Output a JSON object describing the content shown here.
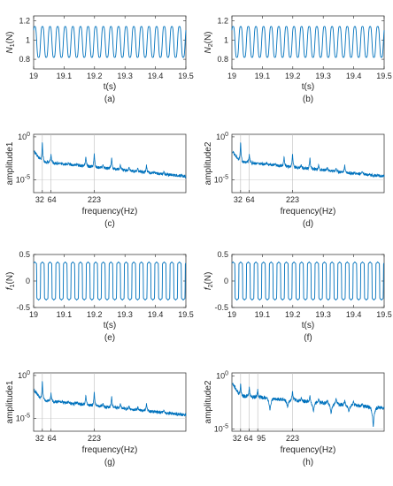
{
  "chart_data": [
    {
      "id": "a",
      "caption": "(a)",
      "type": "line",
      "kind": "time",
      "xlabel": "t(s)",
      "ylabel_main": "N",
      "ylabel_sub": "1",
      "ylabel_unit": "(N)",
      "xlim": [
        19,
        19.5
      ],
      "ylim": [
        0.7,
        1.25
      ],
      "xticks": [
        "19",
        "19.1",
        "19.2",
        "19.3",
        "19.4",
        "19.5"
      ],
      "yticks": [
        "0.8",
        "1",
        "1.2"
      ],
      "ytick_values": [
        0.8,
        1.0,
        1.2
      ],
      "series": [
        {
          "amplitude": 0.18,
          "mean": 0.98,
          "cycles": 20,
          "shape": "sine",
          "color": "#0072bd"
        }
      ]
    },
    {
      "id": "b",
      "caption": "(b)",
      "type": "line",
      "kind": "time",
      "xlabel": "t(s)",
      "ylabel_main": "N",
      "ylabel_sub": "2",
      "ylabel_unit": "(N)",
      "xlim": [
        19,
        19.5
      ],
      "ylim": [
        0.7,
        1.25
      ],
      "xticks": [
        "19",
        "19.1",
        "19.2",
        "19.3",
        "19.4",
        "19.5"
      ],
      "yticks": [
        "0.8",
        "1",
        "1.2"
      ],
      "ytick_values": [
        0.8,
        1.0,
        1.2
      ],
      "series": [
        {
          "amplitude": 0.18,
          "mean": 0.98,
          "cycles": 20,
          "shape": "sine",
          "color": "#0072bd"
        }
      ]
    },
    {
      "id": "c",
      "caption": "(c)",
      "type": "line",
      "kind": "spectrum",
      "xlabel": "frequency(Hz)",
      "ylabel": "amplitude1",
      "ytick_labels": [
        {
          "base": "10",
          "exp": "0",
          "value": 0
        },
        {
          "base": "10",
          "exp": "-5",
          "value": -5
        }
      ],
      "ylim_log10": [
        -6.5,
        0.3
      ],
      "xtick_labels": [
        "32",
        "64",
        "223"
      ],
      "markers_hz": [
        32,
        64,
        223
      ],
      "peaks": [
        {
          "hz": 32,
          "log10_amp": -0.4
        },
        {
          "hz": 64,
          "log10_amp": -2.0
        },
        {
          "hz": 96,
          "log10_amp": -3.0
        },
        {
          "hz": 128,
          "log10_amp": -3.0
        },
        {
          "hz": 160,
          "log10_amp": -3.1
        },
        {
          "hz": 192,
          "log10_amp": -2.2
        },
        {
          "hz": 223,
          "log10_amp": -1.8
        },
        {
          "hz": 255,
          "log10_amp": -3.2
        },
        {
          "hz": 287,
          "log10_amp": -2.3
        },
        {
          "hz": 319,
          "log10_amp": -3.2
        },
        {
          "hz": 351,
          "log10_amp": -3.5
        },
        {
          "hz": 383,
          "log10_amp": -3.6
        },
        {
          "hz": 415,
          "log10_amp": -3.2
        },
        {
          "hz": 447,
          "log10_amp": -4.3
        },
        {
          "hz": 479,
          "log10_amp": -4.0
        }
      ],
      "floor_log10_start": -2.8,
      "floor_log10_end": -4.6,
      "xmax_hz": 560,
      "color": "#0072bd"
    },
    {
      "id": "d",
      "caption": "(d)",
      "type": "line",
      "kind": "spectrum",
      "xlabel": "frequency(Hz)",
      "ylabel": "amplitude2",
      "ytick_labels": [
        {
          "base": "10",
          "exp": "0",
          "value": 0
        },
        {
          "base": "10",
          "exp": "-5",
          "value": -5
        }
      ],
      "ylim_log10": [
        -6.5,
        0.3
      ],
      "xtick_labels": [
        "32",
        "64",
        "223"
      ],
      "markers_hz": [
        32,
        64,
        223
      ],
      "peaks": [
        {
          "hz": 32,
          "log10_amp": -0.4
        },
        {
          "hz": 64,
          "log10_amp": -2.0
        },
        {
          "hz": 96,
          "log10_amp": -3.0
        },
        {
          "hz": 128,
          "log10_amp": -3.0
        },
        {
          "hz": 160,
          "log10_amp": -3.1
        },
        {
          "hz": 192,
          "log10_amp": -2.2
        },
        {
          "hz": 223,
          "log10_amp": -1.8
        },
        {
          "hz": 255,
          "log10_amp": -3.2
        },
        {
          "hz": 287,
          "log10_amp": -2.3
        },
        {
          "hz": 319,
          "log10_amp": -3.2
        },
        {
          "hz": 351,
          "log10_amp": -3.5
        },
        {
          "hz": 383,
          "log10_amp": -3.6
        },
        {
          "hz": 415,
          "log10_amp": -3.2
        },
        {
          "hz": 447,
          "log10_amp": -4.3
        },
        {
          "hz": 479,
          "log10_amp": -4.0
        }
      ],
      "floor_log10_start": -2.8,
      "floor_log10_end": -4.6,
      "xmax_hz": 560,
      "color": "#0072bd"
    },
    {
      "id": "e",
      "caption": "(e)",
      "type": "line",
      "kind": "time",
      "xlabel": "t(s)",
      "ylabel_main": "f",
      "ylabel_sub": "1",
      "ylabel_unit": "(N)",
      "xlim": [
        19,
        19.5
      ],
      "ylim": [
        -0.5,
        0.5
      ],
      "xticks": [
        "19",
        "19.1",
        "19.2",
        "19.3",
        "19.4",
        "19.5"
      ],
      "yticks": [
        "-0.5",
        "0",
        "0.5"
      ],
      "ytick_values": [
        -0.5,
        0,
        0.5
      ],
      "series": [
        {
          "amplitude": 0.36,
          "mean": 0.0,
          "cycles": 20,
          "shape": "square",
          "color": "#0072bd"
        }
      ]
    },
    {
      "id": "f",
      "caption": "(f)",
      "type": "line",
      "kind": "time",
      "xlabel": "t(s)",
      "ylabel_main": "f",
      "ylabel_sub": "2",
      "ylabel_unit": "(N)",
      "xlim": [
        19,
        19.5
      ],
      "ylim": [
        -0.5,
        0.5
      ],
      "xticks": [
        "19",
        "19.1",
        "19.2",
        "19.3",
        "19.4",
        "19.5"
      ],
      "yticks": [
        "-0.5",
        "0",
        "0.5"
      ],
      "ytick_values": [
        -0.5,
        0,
        0.5
      ],
      "series": [
        {
          "amplitude": 0.36,
          "mean": 0.0,
          "cycles": 20,
          "shape": "square",
          "color": "#0072bd"
        }
      ]
    },
    {
      "id": "g",
      "caption": "(g)",
      "type": "line",
      "kind": "spectrum",
      "xlabel": "frequency(Hz)",
      "ylabel": "amplitude1",
      "ytick_labels": [
        {
          "base": "10",
          "exp": "0",
          "value": 0
        },
        {
          "base": "10",
          "exp": "-5",
          "value": -5
        }
      ],
      "ylim_log10": [
        -6.5,
        0.3
      ],
      "xtick_labels": [
        "32",
        "64",
        "223"
      ],
      "markers_hz": [
        32,
        64,
        223
      ],
      "peaks": [
        {
          "hz": 32,
          "log10_amp": -0.4
        },
        {
          "hz": 64,
          "log10_amp": -2.0
        },
        {
          "hz": 96,
          "log10_amp": -3.0
        },
        {
          "hz": 128,
          "log10_amp": -3.0
        },
        {
          "hz": 160,
          "log10_amp": -3.1
        },
        {
          "hz": 192,
          "log10_amp": -2.2
        },
        {
          "hz": 223,
          "log10_amp": -1.8
        },
        {
          "hz": 255,
          "log10_amp": -3.2
        },
        {
          "hz": 287,
          "log10_amp": -2.3
        },
        {
          "hz": 319,
          "log10_amp": -3.2
        },
        {
          "hz": 351,
          "log10_amp": -3.5
        },
        {
          "hz": 383,
          "log10_amp": -3.6
        },
        {
          "hz": 415,
          "log10_amp": -3.2
        },
        {
          "hz": 447,
          "log10_amp": -4.3
        },
        {
          "hz": 479,
          "log10_amp": -4.0
        }
      ],
      "floor_log10_start": -2.8,
      "floor_log10_end": -4.6,
      "xmax_hz": 560,
      "color": "#0072bd"
    },
    {
      "id": "h",
      "caption": "(h)",
      "type": "line",
      "kind": "spectrum",
      "xlabel": "frequency(Hz)",
      "ylabel": "amplitude2",
      "ytick_labels": [
        {
          "base": "10",
          "exp": "0",
          "value": 0
        },
        {
          "base": "10",
          "exp": "-5",
          "value": -5
        }
      ],
      "ylim_log10": [
        -5.2,
        0.3
      ],
      "xtick_labels": [
        "32",
        "64",
        "95",
        "223"
      ],
      "markers_hz": [
        32,
        64,
        95,
        223
      ],
      "peaks": [
        {
          "hz": 32,
          "log10_amp": -0.6
        },
        {
          "hz": 64,
          "log10_amp": -1.0
        },
        {
          "hz": 95,
          "log10_amp": -1.2
        },
        {
          "hz": 128,
          "log10_amp": -2.0
        },
        {
          "hz": 160,
          "log10_amp": -2.6
        },
        {
          "hz": 192,
          "log10_amp": -2.2
        },
        {
          "hz": 223,
          "log10_amp": -1.3
        },
        {
          "hz": 255,
          "log10_amp": -2.0
        },
        {
          "hz": 287,
          "log10_amp": -1.7
        },
        {
          "hz": 319,
          "log10_amp": -2.1
        },
        {
          "hz": 351,
          "log10_amp": -2.2
        },
        {
          "hz": 383,
          "log10_amp": -2.0
        },
        {
          "hz": 415,
          "log10_amp": -2.2
        },
        {
          "hz": 447,
          "log10_amp": -2.3
        },
        {
          "hz": 479,
          "log10_amp": -2.6
        }
      ],
      "dips": [
        {
          "hz": 140,
          "log10_amp": -3.3
        },
        {
          "hz": 205,
          "log10_amp": -3.0
        },
        {
          "hz": 300,
          "log10_amp": -3.4
        },
        {
          "hz": 365,
          "log10_amp": -3.6
        },
        {
          "hz": 430,
          "log10_amp": -3.4
        },
        {
          "hz": 520,
          "log10_amp": -4.9
        }
      ],
      "floor_log10_start": -1.8,
      "floor_log10_end": -3.0,
      "xmax_hz": 560,
      "color": "#0072bd"
    }
  ]
}
